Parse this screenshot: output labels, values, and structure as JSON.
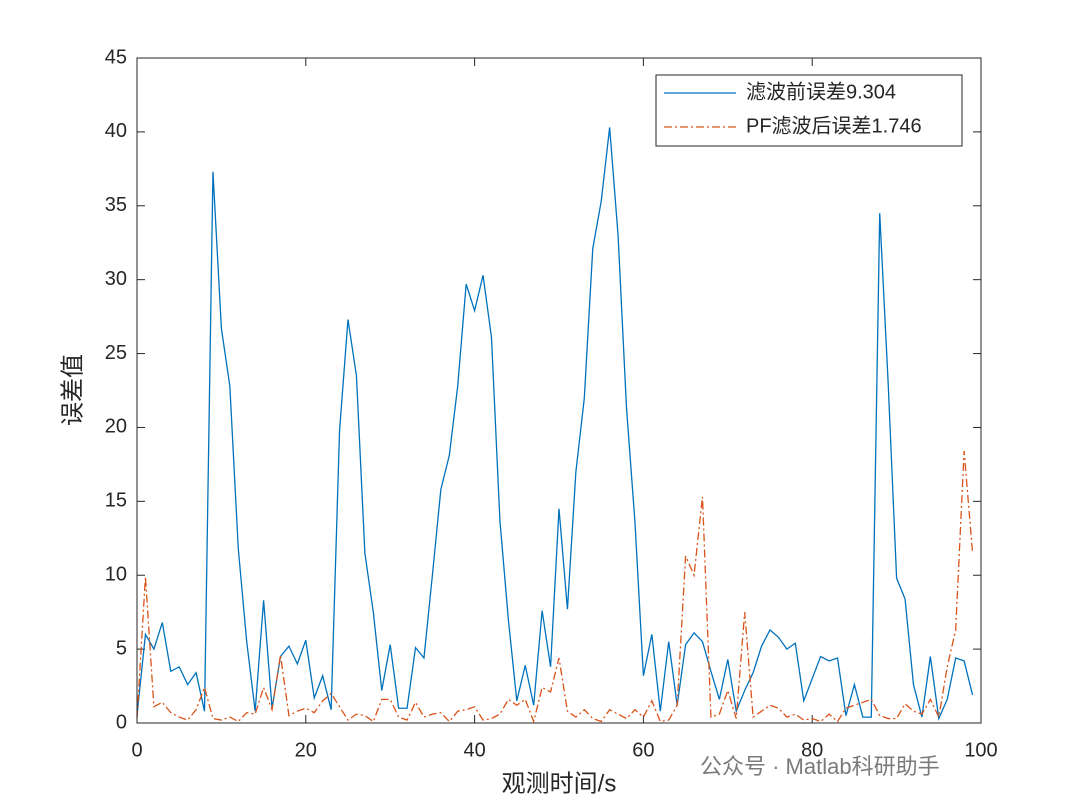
{
  "chart_data": {
    "type": "line",
    "xlabel": "观测时间/s",
    "ylabel": "误差值",
    "x": [
      0,
      1,
      2,
      3,
      4,
      5,
      6,
      7,
      8,
      9,
      10,
      11,
      12,
      13,
      14,
      15,
      16,
      17,
      18,
      19,
      20,
      21,
      22,
      23,
      24,
      25,
      26,
      27,
      28,
      29,
      30,
      31,
      32,
      33,
      34,
      35,
      36,
      37,
      38,
      39,
      40,
      41,
      42,
      43,
      44,
      45,
      46,
      47,
      48,
      49,
      50,
      51,
      52,
      53,
      54,
      55,
      56,
      57,
      58,
      59,
      60,
      61,
      62,
      63,
      64,
      65,
      66,
      67,
      68,
      69,
      70,
      71,
      72,
      73,
      74,
      75,
      76,
      77,
      78,
      79,
      80,
      81,
      82,
      83,
      84,
      85,
      86,
      87,
      88,
      89,
      90,
      91,
      92,
      93,
      94,
      95,
      96,
      97,
      98,
      99
    ],
    "series": [
      {
        "name": "滤波前误差9.304",
        "color": "#0072bd",
        "dash": "solid",
        "values": [
          0.5,
          6,
          5,
          6.8,
          3.5,
          3.8,
          2.6,
          3.4,
          0.8,
          37.3,
          26.7,
          22.8,
          11.8,
          5.5,
          0.8,
          8.3,
          1,
          4.5,
          5.2,
          4,
          5.6,
          1.7,
          3.2,
          0.9,
          19.8,
          27.3,
          23.5,
          11.5,
          7.5,
          2.2,
          5.3,
          1,
          1,
          5.1,
          4.4,
          10,
          15.8,
          18.1,
          22.8,
          29.7,
          27.9,
          30.3,
          26.1,
          13.7,
          7,
          1.5,
          3.9,
          1.2,
          7.6,
          3.8,
          14.5,
          7.7,
          17,
          22,
          32.1,
          35.3,
          40.3,
          33,
          21.3,
          13.6,
          3.2,
          6,
          0.8,
          5.5,
          1.2,
          5.3,
          6.1,
          5.5,
          3.5,
          1.6,
          4.3,
          0.8,
          2.2,
          3.4,
          5.2,
          6.3,
          5.8,
          5,
          5.4,
          1.5,
          3,
          4.5,
          4.2,
          4.4,
          0.5,
          2.6,
          0.4,
          0.4,
          34.5,
          23,
          9.8,
          8.4,
          2.6,
          0.4,
          4.5,
          0.3,
          1.6,
          4.4,
          4.2,
          1.9
        ]
      },
      {
        "name": "PF滤波后误差1.746",
        "color": "#d95319",
        "dash": "dashdot",
        "values": [
          0.3,
          9.9,
          1.1,
          1.4,
          0.7,
          0.4,
          0.2,
          0.9,
          2.4,
          0.3,
          0.2,
          0.4,
          0.1,
          0.7,
          0.6,
          2.4,
          0.9,
          4.6,
          0.5,
          0.8,
          1,
          0.7,
          1.5,
          2,
          1.1,
          0.2,
          0.6,
          0.5,
          0.1,
          1.6,
          1.6,
          0.4,
          0.2,
          1.4,
          0.4,
          0.6,
          0.7,
          0.1,
          0.8,
          0.9,
          1.1,
          0.2,
          0.3,
          0.6,
          1.6,
          1.2,
          1.6,
          0.1,
          2.4,
          2.1,
          4.4,
          0.8,
          0.4,
          0.9,
          0.3,
          0.1,
          0.9,
          0.6,
          0.3,
          0.9,
          0.4,
          1.5,
          0.1,
          0.2,
          1.2,
          11.3,
          10,
          15.3,
          0.4,
          0.6,
          2.2,
          0.3,
          7.5,
          0.4,
          0.8,
          1.2,
          1,
          0.4,
          0.6,
          0.2,
          0.3,
          0.1,
          0.6,
          0.1,
          1,
          1.2,
          1.4,
          1.6,
          0.5,
          0.3,
          0.3,
          1.3,
          0.8,
          0.6,
          1.6,
          0.4,
          3.8,
          6.3,
          18.4,
          11.5
        ]
      }
    ],
    "xlim": [
      0,
      100
    ],
    "xticks": [
      0,
      20,
      40,
      60,
      80,
      100
    ],
    "ylim": [
      0,
      45
    ],
    "yticks": [
      0,
      5,
      10,
      15,
      20,
      25,
      30,
      35,
      40,
      45
    ],
    "legend": "northeast",
    "grid": false,
    "watermark": "公众号 · Matlab科研助手"
  }
}
